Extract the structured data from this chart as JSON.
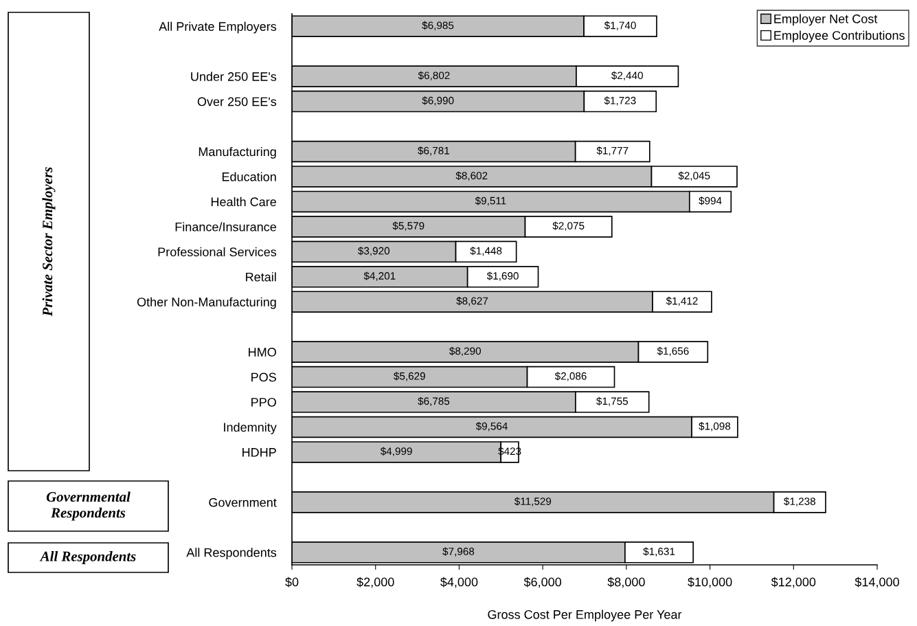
{
  "chart_data": {
    "type": "bar",
    "orientation": "horizontal",
    "stacked": true,
    "xlabel": "Gross Cost Per Employee Per Year",
    "categories": [
      "All Private Employers",
      null,
      "Under 250 EE's",
      "Over 250 EE's",
      null,
      "Manufacturing",
      "Education",
      "Health Care",
      "Finance/Insurance",
      "Professional Services",
      "Retail",
      "Other Non-Manufacturing",
      null,
      "HMO",
      "POS",
      "PPO",
      "Indemnity",
      "HDHP",
      null,
      "Government",
      null,
      "All Respondents"
    ],
    "series": [
      {
        "name": "Employer Net Cost",
        "color": "#c0c0c0",
        "values": [
          6985,
          null,
          6802,
          6990,
          null,
          6781,
          8602,
          9511,
          5579,
          3920,
          4201,
          8627,
          null,
          8290,
          5629,
          6785,
          9564,
          4999,
          null,
          11529,
          null,
          7968
        ],
        "value_labels": [
          "$6,985",
          null,
          "$6,802",
          "$6,990",
          null,
          "$6,781",
          "$8,602",
          "$9,511",
          "$5,579",
          "$3,920",
          "$4,201",
          "$8,627",
          null,
          "$8,290",
          "$5,629",
          "$6,785",
          "$9,564",
          "$4,999",
          null,
          "$11,529",
          null,
          "$7,968"
        ]
      },
      {
        "name": "Employee Contributions",
        "color": "#ffffff",
        "values": [
          1740,
          null,
          2440,
          1723,
          null,
          1777,
          2045,
          994,
          2075,
          1448,
          1690,
          1412,
          null,
          1656,
          2086,
          1755,
          1098,
          423,
          null,
          1238,
          null,
          1631
        ],
        "value_labels": [
          "$1,740",
          null,
          "$2,440",
          "$1,723",
          null,
          "$1,777",
          "$2,045",
          "$994",
          "$2,075",
          "$1,448",
          "$1,690",
          "$1,412",
          null,
          "$1,656",
          "$2,086",
          "$1,755",
          "$1,098",
          "$423",
          null,
          "$1,238",
          null,
          "$1,631"
        ]
      }
    ],
    "xlim": [
      0,
      14000
    ],
    "xticks": [
      {
        "value": 0,
        "label": "$0"
      },
      {
        "value": 2000,
        "label": "$2,000"
      },
      {
        "value": 4000,
        "label": "$4,000"
      },
      {
        "value": 6000,
        "label": "$6,000"
      },
      {
        "value": 8000,
        "label": "$8,000"
      },
      {
        "value": 10000,
        "label": "$10,000"
      },
      {
        "value": 12000,
        "label": "$12,000"
      },
      {
        "value": 14000,
        "label": "$14,000"
      }
    ],
    "annotations": [
      "Private Sector Employers",
      "Governmental Respondents",
      "All Respondents"
    ],
    "legend": "top right",
    "grid": false
  }
}
